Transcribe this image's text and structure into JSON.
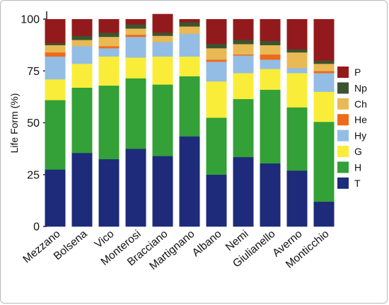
{
  "chart_data": {
    "type": "bar",
    "stacked": true,
    "ylabel": "Life Form (%)",
    "xlabel": "",
    "ylim": [
      0,
      100
    ],
    "yticks": [
      0,
      25,
      50,
      75,
      100
    ],
    "legend_position": "right",
    "categories": [
      "Mezzano",
      "Bolsena",
      "Vico",
      "Monterosi",
      "Bracciano",
      "Martignano",
      "Albano",
      "Nemi",
      "Giulianello",
      "Averno",
      "Monticchio"
    ],
    "series": [
      {
        "name": "T",
        "color": "#1d2b7a",
        "values": [
          27.5,
          35.5,
          32.5,
          37.5,
          34,
          43.5,
          25,
          33.5,
          30.5,
          27,
          12
        ]
      },
      {
        "name": "H",
        "color": "#33a038",
        "values": [
          33.5,
          31.5,
          35.5,
          34,
          34.5,
          29,
          27.5,
          28,
          35.5,
          30.5,
          38.5
        ]
      },
      {
        "name": "G",
        "color": "#f9ed3a",
        "values": [
          10,
          11.5,
          14,
          10,
          13.5,
          9.5,
          17.5,
          12.5,
          10,
          16.5,
          14.5
        ]
      },
      {
        "name": "Hy",
        "color": "#93bde4",
        "values": [
          11,
          8.5,
          4,
          10,
          7,
          11,
          9.5,
          8.5,
          4.5,
          2.5,
          9
        ]
      },
      {
        "name": "He",
        "color": "#ed6a1c",
        "values": [
          2,
          0,
          1,
          1,
          0,
          0,
          1,
          0.5,
          2.5,
          0,
          1
        ]
      },
      {
        "name": "Ch",
        "color": "#e9b955",
        "values": [
          3.5,
          3,
          4.5,
          3,
          3,
          3.5,
          5.5,
          5,
          4.5,
          7.5,
          3.5
        ]
      },
      {
        "name": "Np",
        "color": "#3b5430",
        "values": [
          1,
          2,
          2,
          2,
          1.5,
          2,
          2,
          2,
          2,
          1.5,
          1.5
        ]
      },
      {
        "name": "P",
        "color": "#931a1c",
        "values": [
          11.5,
          8,
          6.5,
          2.5,
          9,
          1.5,
          12,
          10,
          10.5,
          14.5,
          20
        ]
      }
    ],
    "legend_order": [
      "P",
      "Np",
      "Ch",
      "He",
      "Hy",
      "G",
      "H",
      "T"
    ]
  }
}
